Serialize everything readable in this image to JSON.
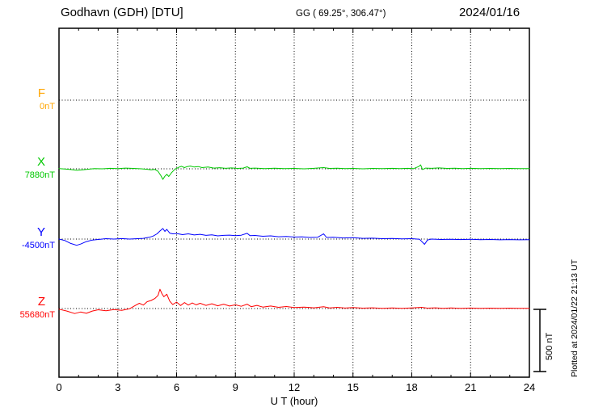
{
  "header": {
    "station": "Godhavn (GDH)  [DTU]",
    "coords": "GG ( 69.25°, 306.47°)",
    "date": "2024/01/16"
  },
  "footer": {
    "xlabel": "U T (hour)",
    "plotted_at": "Plotted at 2024/01/22 21:13 UT"
  },
  "scalebar": {
    "label": "500 nT",
    "span_nT": 500
  },
  "chart_data": {
    "type": "line",
    "title": "Godhavn (GDH) [DTU] magnetogram",
    "date": "2024/01/16",
    "xlabel": "U T (hour)",
    "x_range": [
      0,
      24
    ],
    "x_ticks": [
      0,
      3,
      6,
      9,
      12,
      15,
      18,
      21,
      24
    ],
    "grid": "dotted vertical lines at 3-hour ticks, dotted horizontal line at each component baseline",
    "values_unit": "nT offset from component baseline",
    "scale_bar_nT": 500,
    "legend_position": "left margin component labels",
    "series": [
      {
        "name": "F",
        "color": "#ffa500",
        "baseline_label": "0nT",
        "baseline_nT": 0,
        "draw": false,
        "points": [
          [
            0,
            0
          ],
          [
            24,
            0
          ]
        ]
      },
      {
        "name": "X",
        "color": "#00c800",
        "baseline_label": "7880nT",
        "baseline_nT": 7880,
        "draw": true,
        "points": [
          [
            0,
            2
          ],
          [
            0.3,
            -2
          ],
          [
            0.6,
            -6
          ],
          [
            0.9,
            -12
          ],
          [
            1.2,
            -8
          ],
          [
            1.5,
            -3
          ],
          [
            1.8,
            2
          ],
          [
            2.2,
            0
          ],
          [
            2.6,
            4
          ],
          [
            3,
            2
          ],
          [
            3.4,
            6
          ],
          [
            3.8,
            3
          ],
          [
            4.2,
            0
          ],
          [
            4.5,
            -4
          ],
          [
            4.7,
            -8
          ],
          [
            4.9,
            -5
          ],
          [
            5.05,
            -20
          ],
          [
            5.2,
            -55
          ],
          [
            5.3,
            -85
          ],
          [
            5.4,
            -60
          ],
          [
            5.5,
            -45
          ],
          [
            5.6,
            -62
          ],
          [
            5.75,
            -30
          ],
          [
            5.9,
            -5
          ],
          [
            6.1,
            12
          ],
          [
            6.25,
            20
          ],
          [
            6.4,
            10
          ],
          [
            6.55,
            18
          ],
          [
            6.7,
            22
          ],
          [
            6.9,
            14
          ],
          [
            7.1,
            18
          ],
          [
            7.3,
            10
          ],
          [
            7.6,
            14
          ],
          [
            7.9,
            6
          ],
          [
            8.2,
            9
          ],
          [
            8.5,
            4
          ],
          [
            8.8,
            7
          ],
          [
            9.1,
            3
          ],
          [
            9.4,
            6
          ],
          [
            9.6,
            16
          ],
          [
            9.75,
            4
          ],
          [
            10,
            6
          ],
          [
            10.5,
            2
          ],
          [
            11,
            5
          ],
          [
            11.5,
            1
          ],
          [
            12,
            3
          ],
          [
            12.5,
            0
          ],
          [
            13,
            4
          ],
          [
            13.5,
            10
          ],
          [
            13.8,
            3
          ],
          [
            14.2,
            5
          ],
          [
            14.6,
            1
          ],
          [
            15,
            3
          ],
          [
            15.5,
            0
          ],
          [
            16,
            3
          ],
          [
            16.5,
            1
          ],
          [
            17,
            4
          ],
          [
            17.4,
            1
          ],
          [
            17.8,
            4
          ],
          [
            18.1,
            2
          ],
          [
            18.35,
            18
          ],
          [
            18.45,
            32
          ],
          [
            18.55,
            -6
          ],
          [
            18.7,
            6
          ],
          [
            19,
            4
          ],
          [
            19.4,
            7
          ],
          [
            19.8,
            3
          ],
          [
            20.2,
            5
          ],
          [
            20.6,
            2
          ],
          [
            21,
            4
          ],
          [
            21.5,
            1
          ],
          [
            22,
            3
          ],
          [
            22.5,
            1
          ],
          [
            23,
            3
          ],
          [
            23.5,
            1
          ],
          [
            24,
            2
          ]
        ]
      },
      {
        "name": "Y",
        "color": "#0000ff",
        "baseline_label": "-4500nT",
        "baseline_nT": -4500,
        "draw": true,
        "points": [
          [
            0,
            0
          ],
          [
            0.3,
            -12
          ],
          [
            0.6,
            -35
          ],
          [
            0.9,
            -50
          ],
          [
            1.1,
            -40
          ],
          [
            1.4,
            -20
          ],
          [
            1.7,
            -8
          ],
          [
            2,
            -3
          ],
          [
            2.4,
            3
          ],
          [
            2.8,
            0
          ],
          [
            3.2,
            4
          ],
          [
            3.6,
            0
          ],
          [
            4,
            3
          ],
          [
            4.3,
            6
          ],
          [
            4.6,
            14
          ],
          [
            4.8,
            24
          ],
          [
            5,
            42
          ],
          [
            5.15,
            65
          ],
          [
            5.3,
            85
          ],
          [
            5.4,
            62
          ],
          [
            5.5,
            78
          ],
          [
            5.65,
            48
          ],
          [
            5.8,
            42
          ],
          [
            6,
            45
          ],
          [
            6.3,
            36
          ],
          [
            6.6,
            42
          ],
          [
            6.9,
            33
          ],
          [
            7.2,
            38
          ],
          [
            7.5,
            30
          ],
          [
            7.8,
            34
          ],
          [
            8.1,
            26
          ],
          [
            8.4,
            30
          ],
          [
            8.7,
            32
          ],
          [
            9,
            27
          ],
          [
            9.3,
            31
          ],
          [
            9.6,
            46
          ],
          [
            9.75,
            27
          ],
          [
            10,
            29
          ],
          [
            10.4,
            23
          ],
          [
            10.8,
            26
          ],
          [
            11.2,
            19
          ],
          [
            11.6,
            21
          ],
          [
            12,
            16
          ],
          [
            12.4,
            18
          ],
          [
            12.8,
            13
          ],
          [
            13.2,
            15
          ],
          [
            13.5,
            42
          ],
          [
            13.65,
            13
          ],
          [
            14,
            15
          ],
          [
            14.5,
            9
          ],
          [
            15,
            11
          ],
          [
            15.5,
            6
          ],
          [
            16,
            7
          ],
          [
            16.5,
            3
          ],
          [
            17,
            5
          ],
          [
            17.5,
            1
          ],
          [
            18,
            3
          ],
          [
            18.4,
            -2
          ],
          [
            18.65,
            -42
          ],
          [
            18.8,
            -8
          ],
          [
            19,
            0
          ],
          [
            19.5,
            -3
          ],
          [
            20,
            -1
          ],
          [
            20.5,
            -4
          ],
          [
            21,
            -2
          ],
          [
            21.5,
            -5
          ],
          [
            22,
            -3
          ],
          [
            22.5,
            -6
          ],
          [
            23,
            -4
          ],
          [
            23.5,
            -6
          ],
          [
            24,
            -5
          ]
        ]
      },
      {
        "name": "Z",
        "color": "#ff0000",
        "baseline_label": "55680nT",
        "baseline_nT": 55680,
        "draw": true,
        "points": [
          [
            0,
            -5
          ],
          [
            0.4,
            -20
          ],
          [
            0.8,
            -40
          ],
          [
            1.1,
            -28
          ],
          [
            1.4,
            -38
          ],
          [
            1.7,
            -20
          ],
          [
            2,
            -10
          ],
          [
            2.4,
            -18
          ],
          [
            2.8,
            -8
          ],
          [
            3.2,
            -14
          ],
          [
            3.6,
            -2
          ],
          [
            3.9,
            25
          ],
          [
            4.1,
            42
          ],
          [
            4.3,
            28
          ],
          [
            4.5,
            55
          ],
          [
            4.7,
            65
          ],
          [
            4.9,
            82
          ],
          [
            5.05,
            105
          ],
          [
            5.15,
            155
          ],
          [
            5.25,
            120
          ],
          [
            5.35,
            95
          ],
          [
            5.5,
            115
          ],
          [
            5.65,
            60
          ],
          [
            5.8,
            32
          ],
          [
            6,
            52
          ],
          [
            6.2,
            24
          ],
          [
            6.4,
            48
          ],
          [
            6.6,
            28
          ],
          [
            6.8,
            45
          ],
          [
            7,
            30
          ],
          [
            7.2,
            42
          ],
          [
            7.5,
            25
          ],
          [
            7.8,
            38
          ],
          [
            8.1,
            22
          ],
          [
            8.4,
            35
          ],
          [
            8.7,
            20
          ],
          [
            9,
            30
          ],
          [
            9.3,
            18
          ],
          [
            9.6,
            35
          ],
          [
            9.8,
            15
          ],
          [
            10.1,
            25
          ],
          [
            10.4,
            12
          ],
          [
            10.8,
            20
          ],
          [
            11.2,
            10
          ],
          [
            11.6,
            16
          ],
          [
            12,
            8
          ],
          [
            12.5,
            12
          ],
          [
            13,
            6
          ],
          [
            13.5,
            14
          ],
          [
            13.8,
            5
          ],
          [
            14.2,
            10
          ],
          [
            14.6,
            4
          ],
          [
            15,
            8
          ],
          [
            15.5,
            3
          ],
          [
            16,
            6
          ],
          [
            16.5,
            2
          ],
          [
            17,
            5
          ],
          [
            17.5,
            2
          ],
          [
            18,
            5
          ],
          [
            18.5,
            10
          ],
          [
            18.8,
            3
          ],
          [
            19.2,
            6
          ],
          [
            19.6,
            2
          ],
          [
            20,
            5
          ],
          [
            20.5,
            2
          ],
          [
            21,
            4
          ],
          [
            21.5,
            1
          ],
          [
            22,
            3
          ],
          [
            22.5,
            1
          ],
          [
            23,
            3
          ],
          [
            23.5,
            1
          ],
          [
            24,
            2
          ]
        ]
      }
    ]
  }
}
